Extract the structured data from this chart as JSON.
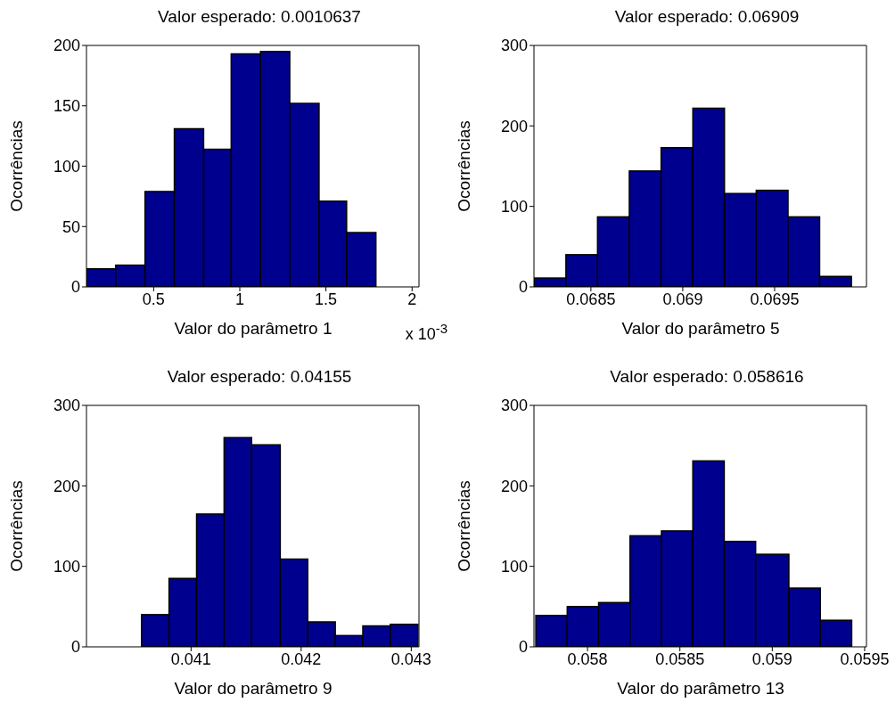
{
  "chart_data": [
    {
      "type": "histogram",
      "title": "Valor esperado: 0.0010637",
      "xlabel": "Valor do parâmetro 1",
      "ylabel": "Ocorrências",
      "color": "#00008f",
      "annotations": [
        "x 10$^{-3}$"
      ],
      "bins": [
        0.11,
        0.28,
        0.45,
        0.62,
        0.79,
        0.95,
        1.12,
        1.29,
        1.46,
        1.62,
        1.79
      ],
      "values": [
        15,
        18,
        79,
        131,
        114,
        193,
        195,
        152,
        71,
        45
      ],
      "xlim": [
        0.11,
        2.04
      ],
      "xticks": [
        0.5,
        1,
        1.5,
        2
      ],
      "ylim": [
        0,
        200
      ],
      "yticks": [
        0,
        50,
        100,
        150,
        200
      ]
    },
    {
      "type": "histogram",
      "title": "Valor esperado: 0.06909",
      "xlabel": "Valor do parâmetro 5",
      "ylabel": "Ocorrências",
      "color": "#00008f",
      "bins": [
        0.068191,
        0.068364,
        0.068536,
        0.068709,
        0.068882,
        0.069055,
        0.069227,
        0.0694,
        0.069573,
        0.069745,
        0.069918
      ],
      "values": [
        11,
        40,
        87,
        144,
        173,
        222,
        116,
        120,
        87,
        13
      ],
      "xlim": [
        0.06819,
        0.07
      ],
      "xticks": [
        0.0685,
        0.069,
        0.0695
      ],
      "ylim": [
        0,
        300
      ],
      "yticks": [
        0,
        100,
        200,
        300
      ]
    },
    {
      "type": "histogram",
      "title": "Valor esperado: 0.04155",
      "xlabel": "Valor do parâmetro 9",
      "ylabel": "Ocorrências",
      "color": "#00008f",
      "bins": [
        0.04055,
        0.0408,
        0.04105,
        0.0413,
        0.04155,
        0.04181,
        0.04206,
        0.04231,
        0.04256,
        0.04281,
        0.04306
      ],
      "values": [
        40,
        85,
        165,
        260,
        251,
        109,
        31,
        14,
        26,
        28
      ],
      "xlim": [
        0.04005,
        0.04307
      ],
      "xticks": [
        0.041,
        0.042,
        0.043
      ],
      "ylim": [
        0,
        300
      ],
      "yticks": [
        0,
        100,
        200,
        300
      ]
    },
    {
      "type": "histogram",
      "title": "Valor esperado: 0.058616",
      "xlabel": "Valor do parâmetro 13",
      "ylabel": "Ocorrências",
      "color": "#00008f",
      "bins": [
        0.05772,
        0.05789,
        0.05806,
        0.05823,
        0.0584,
        0.05857,
        0.05874,
        0.05891,
        0.05909,
        0.05926,
        0.05943
      ],
      "values": [
        39,
        50,
        55,
        138,
        144,
        231,
        131,
        115,
        73,
        33
      ],
      "xlim": [
        0.05771,
        0.05951
      ],
      "xticks": [
        0.058,
        0.0585,
        0.059,
        0.0595
      ],
      "ylim": [
        0,
        300
      ],
      "yticks": [
        0,
        100,
        200,
        300
      ]
    }
  ]
}
